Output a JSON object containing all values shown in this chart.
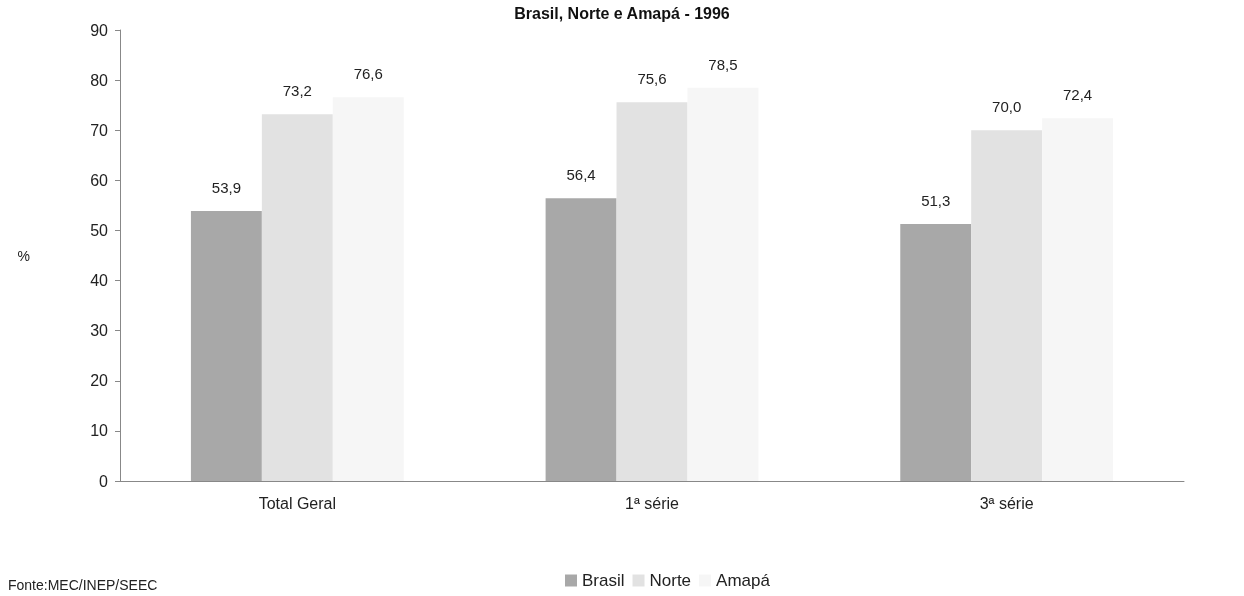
{
  "chart_data": {
    "type": "bar",
    "title": "Brasil, Norte e Amapá - 1996",
    "ylabel": "%",
    "categories": [
      "Total Geral",
      "1ª série",
      "3ª série"
    ],
    "series": [
      {
        "name": "Brasil",
        "color": "#a8a8a8",
        "values": [
          53.9,
          56.4,
          51.3
        ],
        "value_labels": [
          "53,9",
          "56,4",
          "51,3"
        ]
      },
      {
        "name": "Norte",
        "color": "#e2e2e2",
        "values": [
          73.2,
          75.6,
          70.0
        ],
        "value_labels": [
          "73,2",
          "75,6",
          "70,0"
        ]
      },
      {
        "name": "Amapá",
        "color": "#f6f6f6",
        "values": [
          76.6,
          78.5,
          72.4
        ],
        "value_labels": [
          "76,6",
          "78,5",
          "72,4"
        ]
      }
    ],
    "ylim": [
      0,
      90
    ],
    "yticks": [
      0,
      10,
      20,
      30,
      40,
      50,
      60,
      70,
      80,
      90
    ],
    "grid": false,
    "legend": "bottom",
    "annotations": [
      "Fonte:MEC/INEP/SEEC"
    ]
  }
}
